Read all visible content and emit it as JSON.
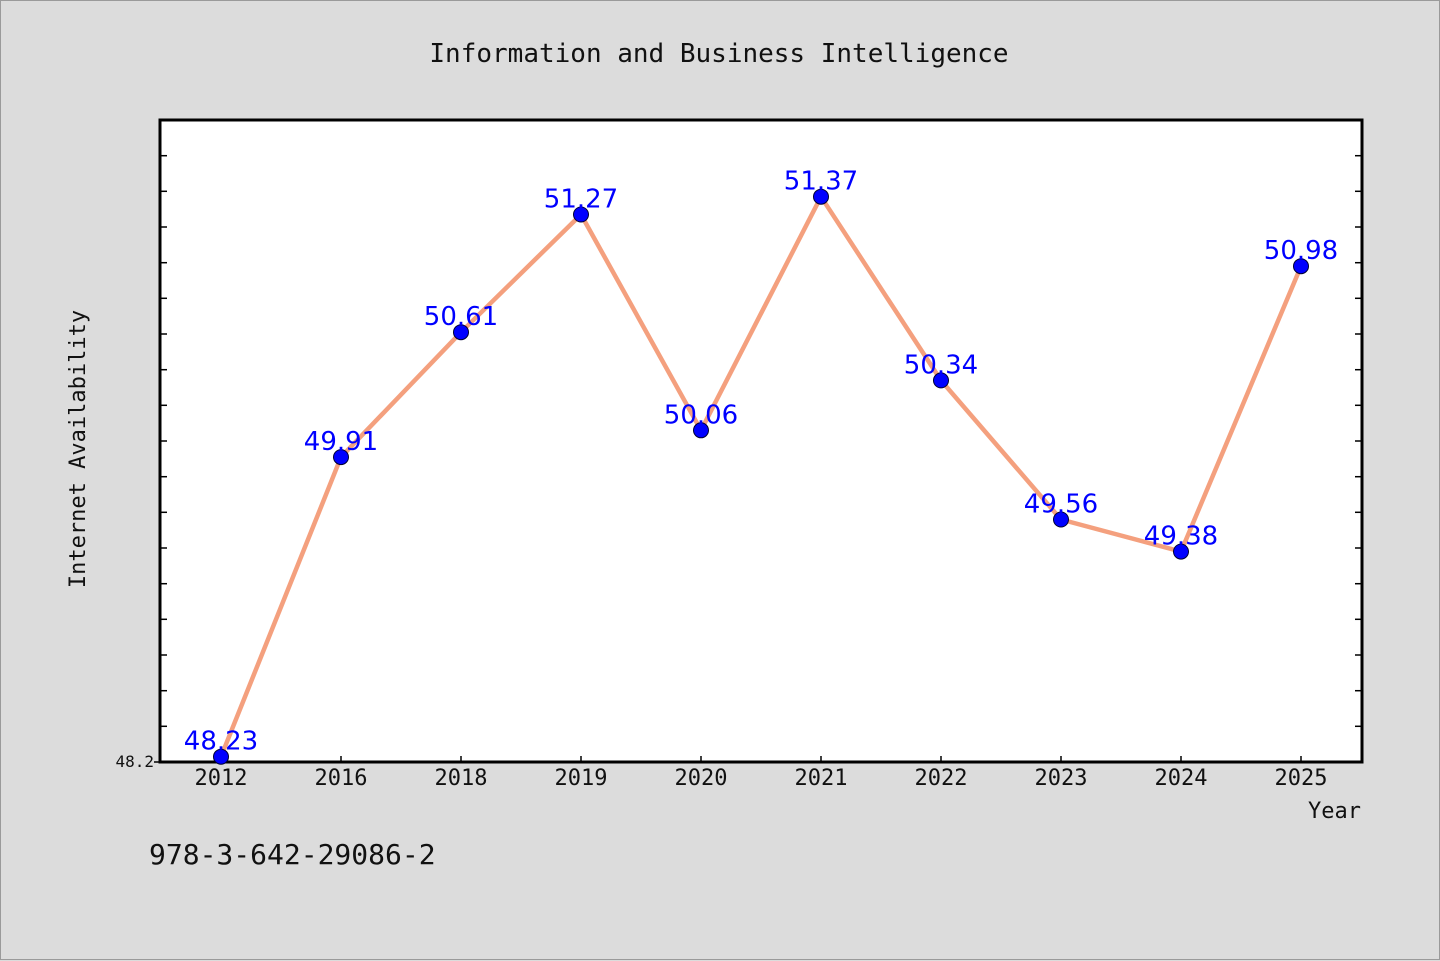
{
  "chart_data": {
    "type": "line",
    "title": "Information and Business Intelligence",
    "xlabel": "Year",
    "ylabel": "Internet Availability",
    "categories": [
      "2012",
      "2016",
      "2018",
      "2019",
      "2020",
      "2021",
      "2022",
      "2023",
      "2024",
      "2025"
    ],
    "series": [
      {
        "values": [
          48.23,
          49.91,
          50.61,
          51.27,
          50.06,
          51.37,
          50.34,
          49.56,
          49.38,
          50.98
        ],
        "labels": [
          "48.23",
          "49.91",
          "50.61",
          "51.27",
          "50.06",
          "51.37",
          "50.34",
          "49.56",
          "49.38",
          "50.98"
        ],
        "line_color": "#f4a07e",
        "marker_color": "#0000ff"
      }
    ],
    "y_tick_labels": [
      "48.2"
    ],
    "ylim": [
      48.2,
      51.8
    ],
    "grid": false,
    "legend": "none"
  },
  "footnote": "978-3-642-29086-2",
  "colors": {
    "background": "#dcdcdc",
    "plot_area": "#ffffff",
    "label": "#0000ff"
  }
}
